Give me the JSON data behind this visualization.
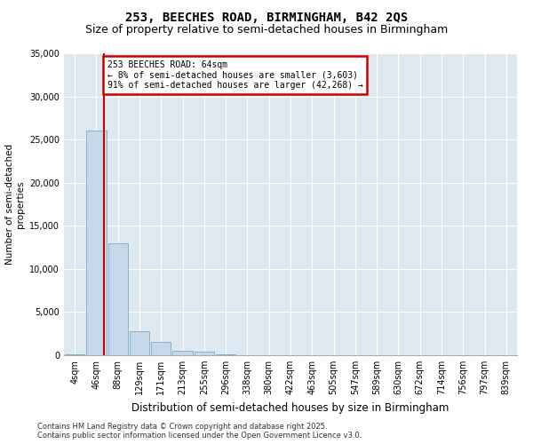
{
  "title1": "253, BEECHES ROAD, BIRMINGHAM, B42 2QS",
  "title2": "Size of property relative to semi-detached houses in Birmingham",
  "xlabel": "Distribution of semi-detached houses by size in Birmingham",
  "ylabel": "Number of semi-detached\nproperties",
  "categories": [
    "4sqm",
    "46sqm",
    "88sqm",
    "129sqm",
    "171sqm",
    "213sqm",
    "255sqm",
    "296sqm",
    "338sqm",
    "380sqm",
    "422sqm",
    "463sqm",
    "505sqm",
    "547sqm",
    "589sqm",
    "630sqm",
    "672sqm",
    "714sqm",
    "756sqm",
    "797sqm",
    "839sqm"
  ],
  "bar_heights": [
    150,
    26000,
    13000,
    2800,
    1500,
    500,
    380,
    100,
    30,
    10,
    5,
    3,
    2,
    1,
    1,
    0,
    0,
    0,
    0,
    0,
    0
  ],
  "bar_color": "#c5d8ea",
  "bar_edge_color": "#7aaac8",
  "background_color": "#dde8f0",
  "grid_color": "#ffffff",
  "property_line_x": 1.35,
  "property_line_color": "#cc0000",
  "annotation_text": "253 BEECHES ROAD: 64sqm\n← 8% of semi-detached houses are smaller (3,603)\n91% of semi-detached houses are larger (42,268) →",
  "annotation_box_color": "#cc0000",
  "ylim": [
    0,
    35000
  ],
  "yticks": [
    0,
    5000,
    10000,
    15000,
    20000,
    25000,
    30000,
    35000
  ],
  "footer": "Contains HM Land Registry data © Crown copyright and database right 2025.\nContains public sector information licensed under the Open Government Licence v3.0.",
  "title_fontsize": 10,
  "subtitle_fontsize": 9,
  "tick_fontsize": 7,
  "ylabel_fontsize": 7.5,
  "xlabel_fontsize": 8.5,
  "footer_fontsize": 6
}
